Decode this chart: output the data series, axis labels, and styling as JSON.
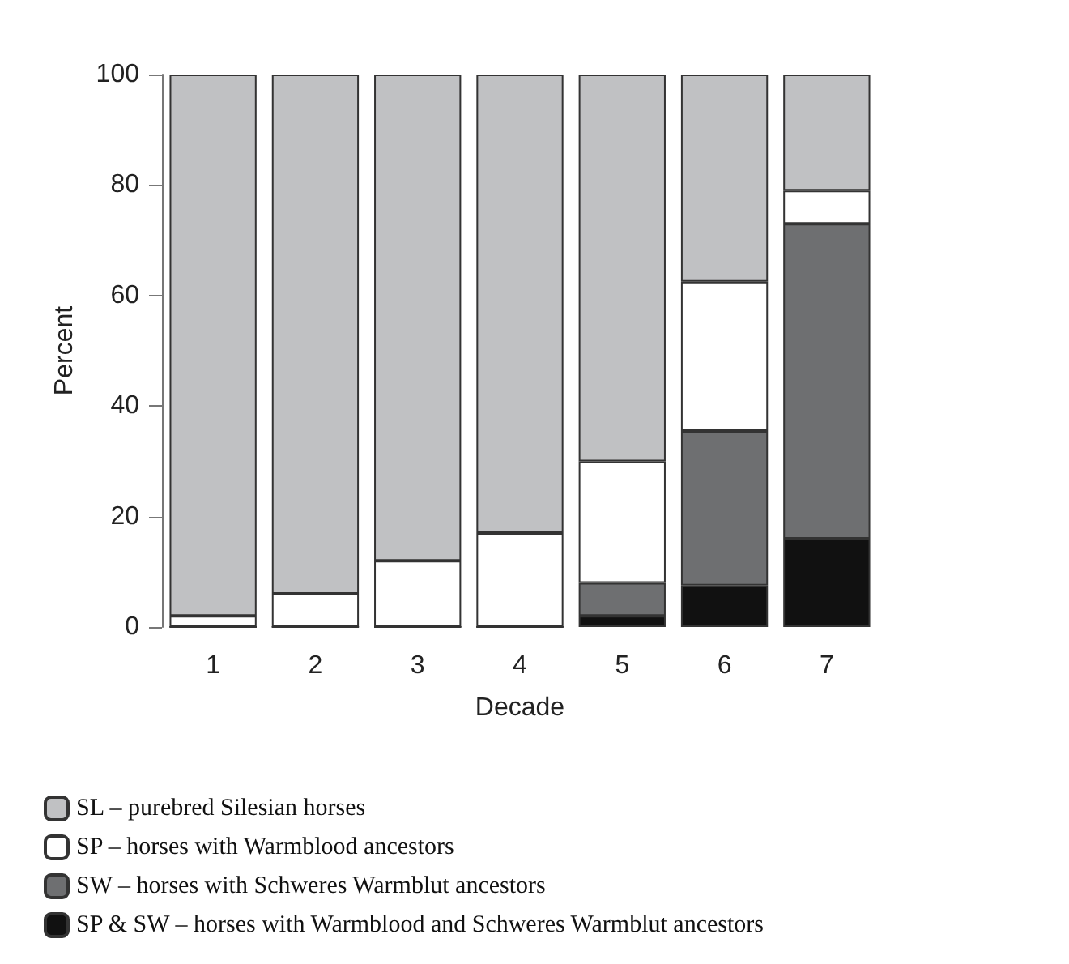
{
  "chart_data": {
    "type": "bar",
    "stacked": true,
    "xlabel": "Decade",
    "ylabel": "Percent",
    "categories": [
      "1",
      "2",
      "3",
      "4",
      "5",
      "6",
      "7"
    ],
    "series": [
      {
        "name": "SP & SW – horses with Warmblood and Schweres Warmblut ancestors",
        "color": "#111111",
        "values": [
          0,
          0,
          0,
          0,
          2,
          7.5,
          16
        ]
      },
      {
        "name": "SW – horses with Schweres Warmblut ancestors",
        "color": "#6e6f71",
        "values": [
          0,
          0,
          0,
          0,
          6,
          28,
          57
        ]
      },
      {
        "name": "SP – horses with Warmblood ancestors",
        "color": "#ffffff",
        "values": [
          2,
          6,
          12,
          17,
          22,
          27,
          6
        ]
      },
      {
        "name": "SL – purebred Silesian horses",
        "color": "#c0c1c3",
        "values": [
          98,
          94,
          88,
          83,
          70,
          37.5,
          21
        ]
      }
    ],
    "ylim": [
      0,
      100
    ],
    "yticks": [
      0,
      20,
      40,
      60,
      80,
      100
    ],
    "grid": false,
    "legend": "bottom"
  }
}
